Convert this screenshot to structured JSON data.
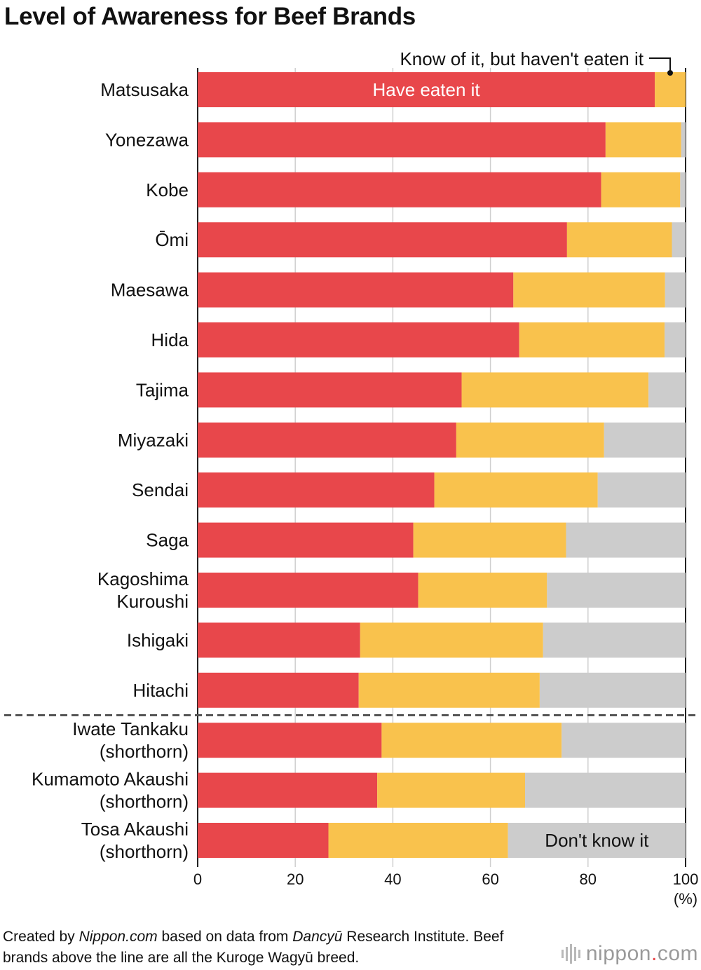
{
  "chart_data": {
    "type": "bar",
    "orientation": "horizontal",
    "stacked": true,
    "title": "Level of Awareness for Beef Brands",
    "categories": [
      "Matsusaka",
      "Yonezawa",
      "Kobe",
      "Ōmi",
      "Maesawa",
      "Hida",
      "Tajima",
      "Miyazaki",
      "Sendai",
      "Saga",
      "Kagoshima Kuroushi",
      "Ishigaki",
      "Hitachi",
      "Iwate Tankaku (shorthorn)",
      "Kumamoto Akaushi (shorthorn)",
      "Tosa Akaushi (shorthorn)"
    ],
    "category_lines": [
      [
        "Matsusaka"
      ],
      [
        "Yonezawa"
      ],
      [
        "Kobe"
      ],
      [
        "Ōmi"
      ],
      [
        "Maesawa"
      ],
      [
        "Hida"
      ],
      [
        "Tajima"
      ],
      [
        "Miyazaki"
      ],
      [
        "Sendai"
      ],
      [
        "Saga"
      ],
      [
        "Kagoshima",
        "Kuroushi"
      ],
      [
        "Ishigaki"
      ],
      [
        "Hitachi"
      ],
      [
        "Iwate Tankaku",
        "(shorthorn)"
      ],
      [
        "Kumamoto Akaushi",
        "(shorthorn)"
      ],
      [
        "Tosa Akaushi",
        "(shorthorn)"
      ]
    ],
    "series": [
      {
        "name": "Have eaten it",
        "color": "#e8474b",
        "values": [
          93.7,
          83.6,
          82.7,
          75.7,
          64.7,
          65.9,
          54.1,
          53.0,
          48.5,
          44.2,
          45.2,
          33.3,
          33.0,
          37.7,
          36.8,
          26.8
        ]
      },
      {
        "name": "Know of it, but haven't eaten it",
        "color": "#f9c24d",
        "values": [
          6.3,
          15.5,
          16.2,
          21.5,
          31.1,
          29.8,
          38.3,
          30.3,
          33.5,
          31.3,
          26.4,
          37.5,
          37.1,
          36.9,
          30.3,
          36.8
        ]
      },
      {
        "name": "Don't know it",
        "color": "#cccccc",
        "values": [
          0.0,
          0.9,
          1.1,
          2.8,
          4.2,
          4.3,
          7.6,
          16.7,
          18.0,
          24.5,
          28.4,
          29.2,
          29.9,
          25.4,
          32.9,
          36.4
        ]
      }
    ],
    "xlim": [
      0,
      100
    ],
    "xticks": [
      0,
      20,
      40,
      60,
      80,
      100
    ],
    "xunit": "(%)",
    "grid": true,
    "separator_after_category": "Hitachi",
    "series_label_positions": [
      "inside-first-bar",
      "top-right-callout",
      "inside-last-bar"
    ]
  },
  "footer": {
    "part1": "Created by ",
    "source_site": "Nippon.com",
    "part2": " based on data from ",
    "source_data": "Dancyū",
    "part3": " Research Institute. Beef brands above the line are all the Kuroge Wagyū breed."
  },
  "logo": {
    "text": "nippon",
    "dot": ".",
    "suffix": "com"
  }
}
